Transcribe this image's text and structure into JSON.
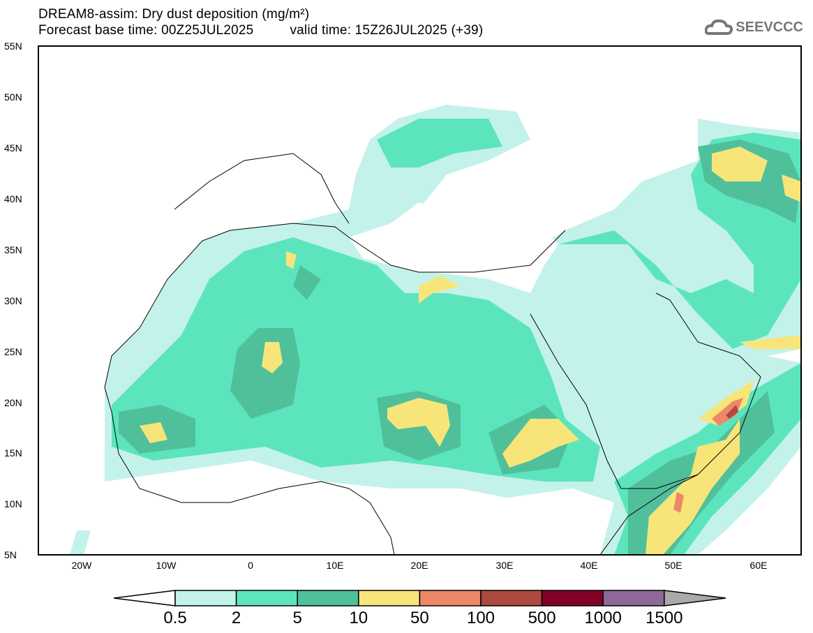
{
  "header": {
    "title": "DREAM8-assim: Dry dust deposition (mg/m²)",
    "base_time": "Forecast base time: 00Z25JUL2025",
    "valid_time": "valid time: 15Z26JUL2025 (+39)"
  },
  "logo": {
    "text": "SEEVCCC",
    "icon": "cloud-icon"
  },
  "map": {
    "lat_labels": [
      "55N",
      "50N",
      "45N",
      "40N",
      "35N",
      "30N",
      "25N",
      "20N",
      "15N",
      "10N",
      "5N"
    ],
    "lon_labels": [
      "20W",
      "10W",
      "0",
      "10E",
      "20E",
      "30E",
      "40E",
      "50E",
      "60E"
    ],
    "extent": {
      "lon": [
        -25,
        65
      ],
      "lat": [
        5,
        55
      ]
    }
  },
  "colorbar": {
    "labels": [
      "0.5",
      "2",
      "5",
      "10",
      "50",
      "100",
      "500",
      "1000",
      "1500"
    ],
    "colors": [
      "#c3f2ea",
      "#5ce5bd",
      "#50c09b",
      "#f7e57a",
      "#ec8868",
      "#ad493f",
      "#820028",
      "#8e6898",
      "#aaaaaa"
    ]
  }
}
